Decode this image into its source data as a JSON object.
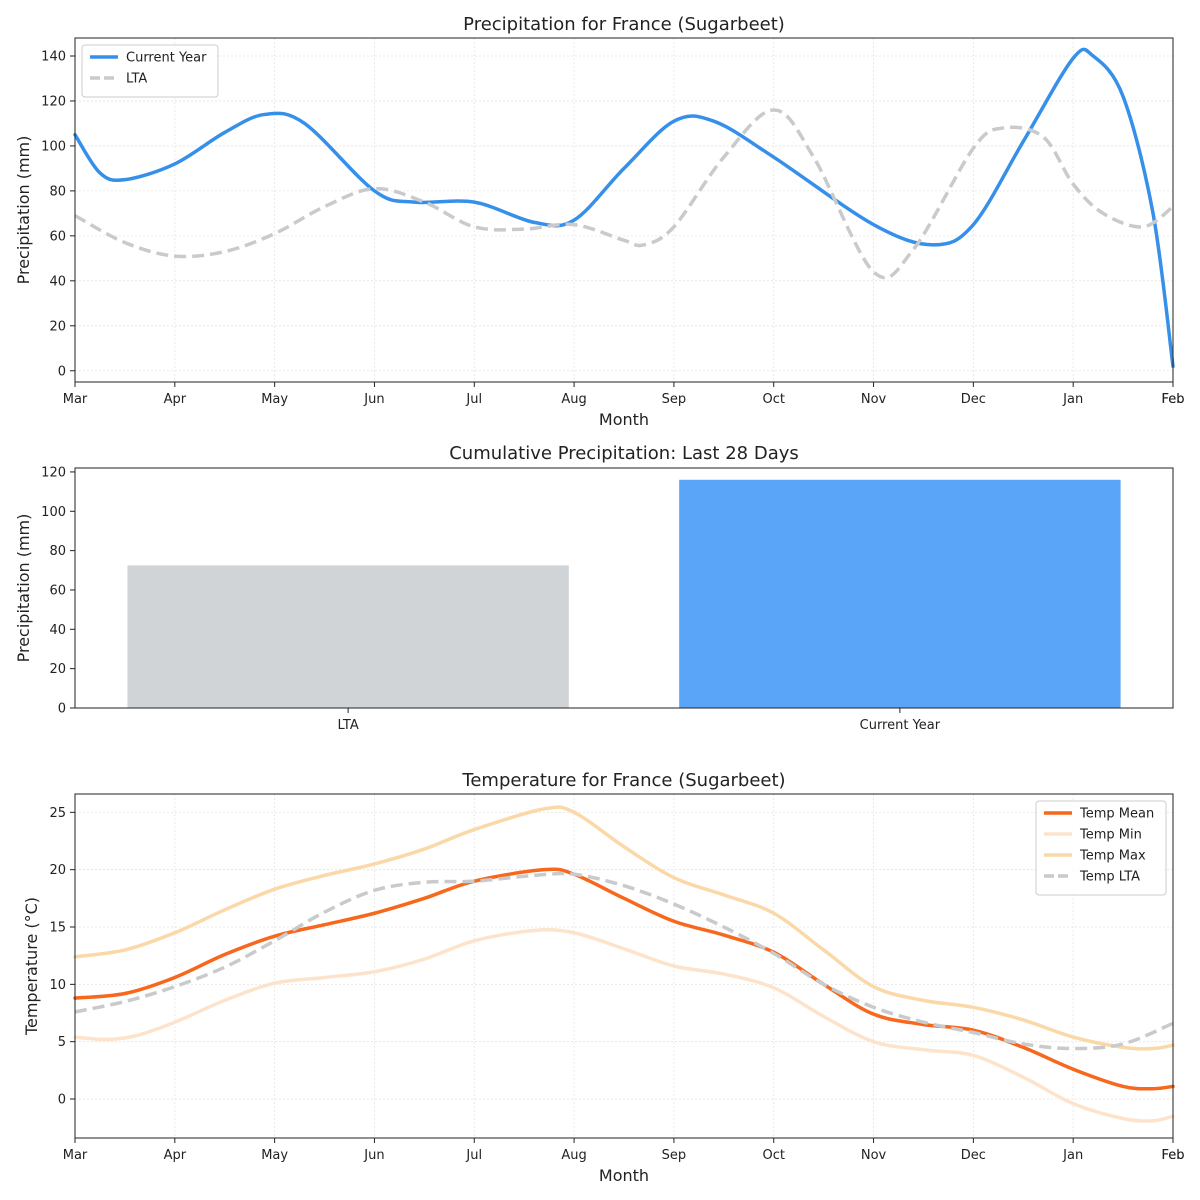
{
  "chart_data": [
    {
      "type": "line",
      "title": "Precipitation for France (Sugarbeet)",
      "xlabel": "Month",
      "ylabel": "Precipitation (mm)",
      "categories": [
        "Mar",
        "Apr",
        "May",
        "Jun",
        "Jul",
        "Aug",
        "Sep",
        "Oct",
        "Nov",
        "Dec",
        "Jan",
        "Feb"
      ],
      "xlim": [
        0,
        11
      ],
      "ylim": [
        -5,
        148
      ],
      "yticks": [
        0,
        20,
        40,
        60,
        80,
        100,
        120,
        140
      ],
      "grid": true,
      "legend": "upper-left",
      "series": [
        {
          "name": "Current Year",
          "color": "#3690ea",
          "style": "solid",
          "points": [
            [
              0,
              105
            ],
            [
              0.25,
              88
            ],
            [
              0.5,
              85
            ],
            [
              1,
              92
            ],
            [
              1.5,
              106
            ],
            [
              1.9,
              114
            ],
            [
              2.3,
              110
            ],
            [
              3,
              80
            ],
            [
              3.4,
              75
            ],
            [
              4,
              75
            ],
            [
              4.6,
              66
            ],
            [
              5,
              67
            ],
            [
              5.5,
              90
            ],
            [
              6,
              111
            ],
            [
              6.4,
              111
            ],
            [
              7,
              95
            ],
            [
              8,
              65
            ],
            [
              8.6,
              56
            ],
            [
              9,
              65
            ],
            [
              9.5,
              102
            ],
            [
              10,
              139
            ],
            [
              10.2,
              140
            ],
            [
              10.5,
              122
            ],
            [
              10.8,
              70
            ],
            [
              11,
              2
            ]
          ]
        },
        {
          "name": "LTA",
          "color": "#c8cacc",
          "style": "dashed",
          "points": [
            [
              0,
              69
            ],
            [
              0.5,
              57
            ],
            [
              1,
              51
            ],
            [
              1.5,
              53
            ],
            [
              2,
              61
            ],
            [
              2.5,
              73
            ],
            [
              3,
              81
            ],
            [
              3.5,
              75
            ],
            [
              4,
              64
            ],
            [
              4.5,
              63
            ],
            [
              5,
              65
            ],
            [
              5.5,
              58
            ],
            [
              5.7,
              56
            ],
            [
              6,
              64
            ],
            [
              6.5,
              95
            ],
            [
              7,
              116
            ],
            [
              7.4,
              95
            ],
            [
              8,
              44
            ],
            [
              8.4,
              54
            ],
            [
              9,
              99
            ],
            [
              9.3,
              108
            ],
            [
              9.7,
              104
            ],
            [
              10,
              83
            ],
            [
              10.3,
              70
            ],
            [
              10.7,
              64
            ],
            [
              11,
              73
            ]
          ]
        }
      ]
    },
    {
      "type": "bar",
      "title": "Cumulative Precipitation: Last 28 Days",
      "xlabel": "",
      "ylabel": "Precipitation (mm)",
      "categories": [
        "LTA",
        "Current Year"
      ],
      "values": [
        72.5,
        116
      ],
      "colors": [
        "#d1d4d7",
        "#5aa5f8"
      ],
      "ylim": [
        0,
        122
      ],
      "yticks": [
        0,
        20,
        40,
        60,
        80,
        100,
        120
      ],
      "grid": false
    },
    {
      "type": "line",
      "title": "Temperature for France (Sugarbeet)",
      "xlabel": "Month",
      "ylabel": "Temperature (°C)",
      "categories": [
        "Mar",
        "Apr",
        "May",
        "Jun",
        "Jul",
        "Aug",
        "Sep",
        "Oct",
        "Nov",
        "Dec",
        "Jan",
        "Feb"
      ],
      "xlim": [
        0,
        11
      ],
      "ylim": [
        -3.4,
        26.6
      ],
      "yticks": [
        0,
        5,
        10,
        15,
        20,
        25
      ],
      "grid": true,
      "legend": "upper-right",
      "series": [
        {
          "name": "Temp Mean",
          "color": "#f7671c",
          "style": "solid",
          "points": [
            [
              0,
              8.8
            ],
            [
              0.5,
              9.2
            ],
            [
              1,
              10.6
            ],
            [
              1.5,
              12.6
            ],
            [
              2,
              14.2
            ],
            [
              2.5,
              15.2
            ],
            [
              3,
              16.2
            ],
            [
              3.5,
              17.5
            ],
            [
              4,
              19.0
            ],
            [
              4.7,
              20.0
            ],
            [
              5,
              19.6
            ],
            [
              5.5,
              17.5
            ],
            [
              6,
              15.5
            ],
            [
              6.5,
              14.3
            ],
            [
              7,
              12.8
            ],
            [
              7.5,
              10.0
            ],
            [
              8,
              7.4
            ],
            [
              8.5,
              6.5
            ],
            [
              9,
              6.0
            ],
            [
              9.5,
              4.5
            ],
            [
              10,
              2.6
            ],
            [
              10.5,
              1.1
            ],
            [
              10.8,
              0.9
            ],
            [
              11,
              1.1
            ]
          ]
        },
        {
          "name": "Temp Min",
          "color": "#fde3cb",
          "style": "solid",
          "points": [
            [
              0,
              5.4
            ],
            [
              0.3,
              5.2
            ],
            [
              0.6,
              5.5
            ],
            [
              1,
              6.7
            ],
            [
              1.5,
              8.6
            ],
            [
              2,
              10.1
            ],
            [
              2.5,
              10.6
            ],
            [
              3,
              11.1
            ],
            [
              3.5,
              12.2
            ],
            [
              4,
              13.8
            ],
            [
              4.6,
              14.7
            ],
            [
              5,
              14.5
            ],
            [
              5.5,
              13.1
            ],
            [
              6,
              11.6
            ],
            [
              6.5,
              10.9
            ],
            [
              7,
              9.7
            ],
            [
              7.5,
              7.2
            ],
            [
              8,
              5.0
            ],
            [
              8.5,
              4.3
            ],
            [
              9,
              3.8
            ],
            [
              9.5,
              1.9
            ],
            [
              10,
              -0.4
            ],
            [
              10.5,
              -1.7
            ],
            [
              10.8,
              -1.9
            ],
            [
              11,
              -1.5
            ]
          ]
        },
        {
          "name": "Temp Max",
          "color": "#fad8a8",
          "style": "solid",
          "points": [
            [
              0,
              12.4
            ],
            [
              0.5,
              13.0
            ],
            [
              1,
              14.5
            ],
            [
              1.5,
              16.5
            ],
            [
              2,
              18.3
            ],
            [
              2.5,
              19.5
            ],
            [
              3,
              20.5
            ],
            [
              3.5,
              21.8
            ],
            [
              4,
              23.5
            ],
            [
              4.7,
              25.3
            ],
            [
              5,
              25.0
            ],
            [
              5.5,
              22.0
            ],
            [
              6,
              19.3
            ],
            [
              6.5,
              17.8
            ],
            [
              7,
              16.2
            ],
            [
              7.5,
              13.0
            ],
            [
              8,
              9.8
            ],
            [
              8.5,
              8.6
            ],
            [
              9,
              8.0
            ],
            [
              9.5,
              6.9
            ],
            [
              10,
              5.4
            ],
            [
              10.5,
              4.5
            ],
            [
              10.8,
              4.4
            ],
            [
              11,
              4.7
            ]
          ]
        },
        {
          "name": "Temp LTA",
          "color": "#c8cacc",
          "style": "dashed",
          "points": [
            [
              0,
              7.6
            ],
            [
              0.5,
              8.5
            ],
            [
              1,
              9.8
            ],
            [
              1.5,
              11.5
            ],
            [
              2,
              13.8
            ],
            [
              2.5,
              16.3
            ],
            [
              3,
              18.2
            ],
            [
              3.5,
              18.9
            ],
            [
              4,
              19.0
            ],
            [
              4.6,
              19.5
            ],
            [
              5,
              19.6
            ],
            [
              5.5,
              18.6
            ],
            [
              6,
              17.0
            ],
            [
              6.5,
              15.0
            ],
            [
              7,
              12.7
            ],
            [
              7.5,
              10.0
            ],
            [
              8,
              8.0
            ],
            [
              8.5,
              6.7
            ],
            [
              9,
              5.8
            ],
            [
              9.5,
              4.8
            ],
            [
              10,
              4.4
            ],
            [
              10.5,
              4.8
            ],
            [
              11,
              6.6
            ]
          ]
        }
      ]
    }
  ]
}
